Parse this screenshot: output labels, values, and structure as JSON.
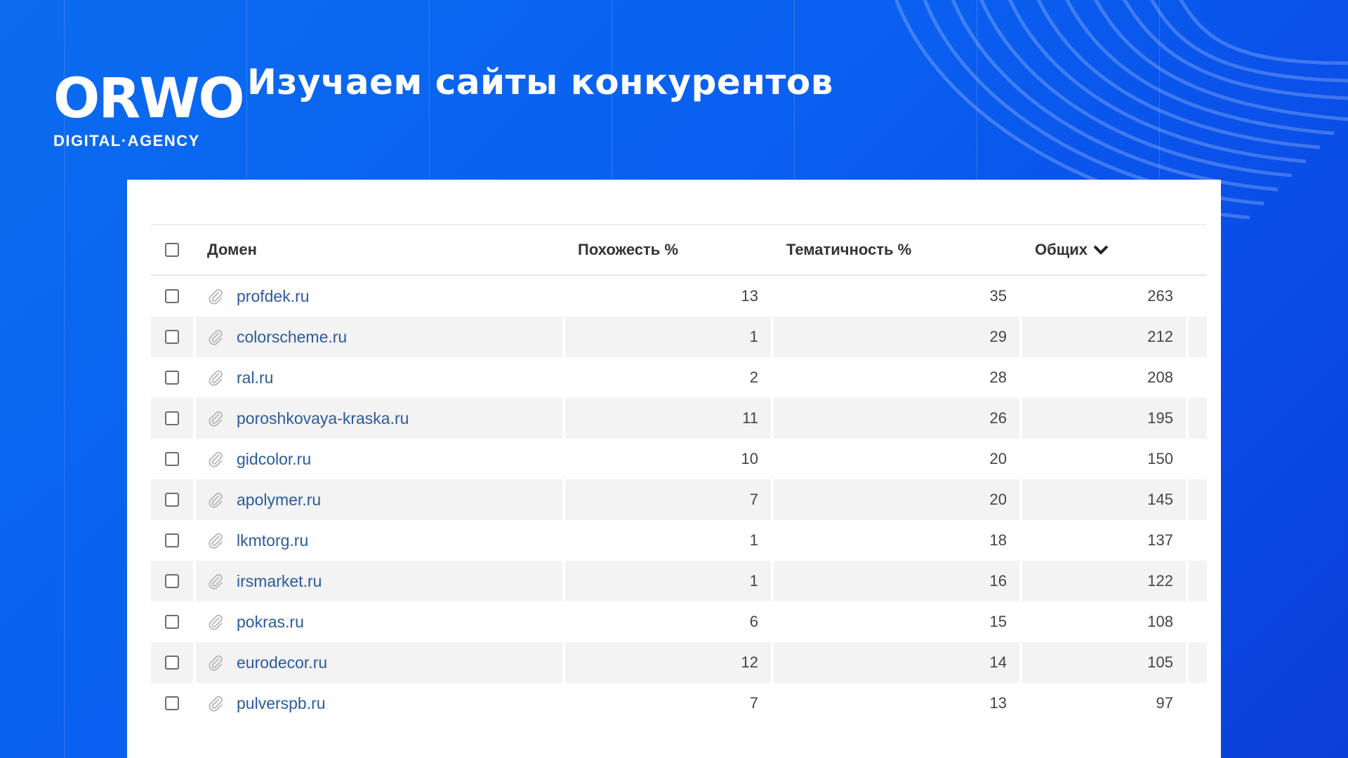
{
  "logo": {
    "mark": "ORWO",
    "sub": "DIGITAL·AGENCY"
  },
  "title": "Изучаем сайты конкурентов",
  "table": {
    "headers": {
      "domain": "Домен",
      "similarity": "Похожесть %",
      "thematic": "Тематичность %",
      "common": "Общих"
    },
    "rows": [
      {
        "domain": "profdek.ru",
        "similarity": "13",
        "thematic": "35",
        "common": "263"
      },
      {
        "domain": "colorscheme.ru",
        "similarity": "1",
        "thematic": "29",
        "common": "212"
      },
      {
        "domain": "ral.ru",
        "similarity": "2",
        "thematic": "28",
        "common": "208"
      },
      {
        "domain": "poroshkovaya-kraska.ru",
        "similarity": "11",
        "thematic": "26",
        "common": "195"
      },
      {
        "domain": "gidcolor.ru",
        "similarity": "10",
        "thematic": "20",
        "common": "150"
      },
      {
        "domain": "apolymer.ru",
        "similarity": "7",
        "thematic": "20",
        "common": "145"
      },
      {
        "domain": "lkmtorg.ru",
        "similarity": "1",
        "thematic": "18",
        "common": "137"
      },
      {
        "domain": "irsmarket.ru",
        "similarity": "1",
        "thematic": "16",
        "common": "122"
      },
      {
        "domain": "pokras.ru",
        "similarity": "6",
        "thematic": "15",
        "common": "108"
      },
      {
        "domain": "eurodecor.ru",
        "similarity": "12",
        "thematic": "14",
        "common": "105"
      },
      {
        "domain": "pulverspb.ru",
        "similarity": "7",
        "thematic": "13",
        "common": "97"
      }
    ]
  },
  "colors": {
    "background": "#0a5ff0",
    "link": "#2b5aa0",
    "stripe": "#f3f3f3"
  }
}
